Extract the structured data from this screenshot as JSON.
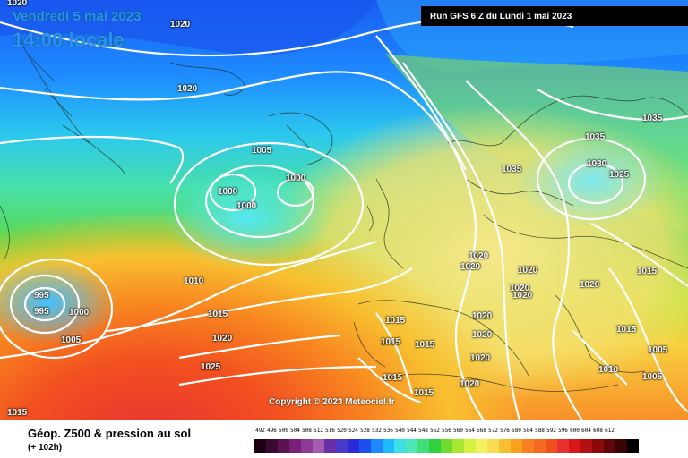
{
  "header": {
    "date_line": "Vendredi 5 mai 2023",
    "time_line": "14:00 locale",
    "run_info": "Run GFS 6 Z du Lundi 1 mai 2023"
  },
  "isobars": [
    {
      "label": "1020",
      "pos": "top-left corner"
    },
    {
      "label": "1020",
      "pos": "north-atlantic-north"
    },
    {
      "label": "1020",
      "pos": "greenland-south"
    },
    {
      "label": "1005",
      "pos": "mid-atlantic"
    },
    {
      "label": "1000",
      "pos": "low-center-a"
    },
    {
      "label": "1000",
      "pos": "low-center-b"
    },
    {
      "label": "1000",
      "pos": "low-center-c"
    },
    {
      "label": "995",
      "pos": "sw-low-upper"
    },
    {
      "label": "995",
      "pos": "sw-low-lower"
    },
    {
      "label": "1000",
      "pos": "sw-low-right"
    },
    {
      "label": "1005",
      "pos": "sw-low-bottom"
    },
    {
      "label": "1010",
      "pos": "atlantic-south"
    },
    {
      "label": "1015",
      "pos": "atlantic-south-2"
    },
    {
      "label": "1020",
      "pos": "atlantic-south-3"
    },
    {
      "label": "1025",
      "pos": "atlantic-south-4"
    },
    {
      "label": "1015",
      "pos": "bottom-left"
    },
    {
      "label": "1035",
      "pos": "scandinavia-west"
    },
    {
      "label": "1035",
      "pos": "scandinavia-east"
    },
    {
      "label": "1035",
      "pos": "scandinavia-far-east"
    },
    {
      "label": "1030",
      "pos": "baltic"
    },
    {
      "label": "1025",
      "pos": "baltic-east"
    },
    {
      "label": "1020",
      "pos": "central-europe-1"
    },
    {
      "label": "1020",
      "pos": "central-europe-2"
    },
    {
      "label": "1020",
      "pos": "alps-1"
    },
    {
      "label": "1020",
      "pos": "alps-2"
    },
    {
      "label": "1020",
      "pos": "alps-3"
    },
    {
      "label": "1020",
      "pos": "east-europe"
    },
    {
      "label": "1015",
      "pos": "east-europe-2"
    },
    {
      "label": "1015",
      "pos": "balkans"
    },
    {
      "label": "1005",
      "pos": "turkey"
    },
    {
      "label": "1010",
      "pos": "aegean"
    },
    {
      "label": "1005",
      "pos": "anatolia"
    },
    {
      "label": "1015",
      "pos": "iberia-1"
    },
    {
      "label": "1015",
      "pos": "iberia-2"
    },
    {
      "label": "1015",
      "pos": "iberia-3"
    },
    {
      "label": "1015",
      "pos": "north-africa-1"
    },
    {
      "label": "1015",
      "pos": "north-africa-2"
    },
    {
      "label": "1020",
      "pos": "italy-1"
    },
    {
      "label": "1020",
      "pos": "italy-2"
    },
    {
      "label": "1020",
      "pos": "med-1"
    },
    {
      "label": "1020",
      "pos": "med-2"
    }
  ],
  "copyright": "Copyright © 2023 Meteociel.fr",
  "legend": {
    "title": "Géop. Z500 & pression au sol",
    "subtitle": "(+ 102h)",
    "scale": [
      {
        "label": "492",
        "color": "#1a0012"
      },
      {
        "label": "496",
        "color": "#3a0a30"
      },
      {
        "label": "500",
        "color": "#5a1250"
      },
      {
        "label": "504",
        "color": "#7a2078"
      },
      {
        "label": "508",
        "color": "#8e3a96"
      },
      {
        "label": "512",
        "color": "#a35cb0"
      },
      {
        "label": "516",
        "color": "#6a2ea8"
      },
      {
        "label": "520",
        "color": "#4a3ac8"
      },
      {
        "label": "524",
        "color": "#2a2ad8"
      },
      {
        "label": "528",
        "color": "#1a50f0"
      },
      {
        "label": "532",
        "color": "#1e88ff"
      },
      {
        "label": "536",
        "color": "#1ebcff"
      },
      {
        "label": "540",
        "color": "#3ee0e8"
      },
      {
        "label": "544",
        "color": "#4ee8b8"
      },
      {
        "label": "548",
        "color": "#3ee07a"
      },
      {
        "label": "552",
        "color": "#30d040"
      },
      {
        "label": "556",
        "color": "#70dc30"
      },
      {
        "label": "560",
        "color": "#a8e830"
      },
      {
        "label": "564",
        "color": "#d8f040"
      },
      {
        "label": "568",
        "color": "#f4f060"
      },
      {
        "label": "572",
        "color": "#fadc50"
      },
      {
        "label": "576",
        "color": "#f8c030"
      },
      {
        "label": "580",
        "color": "#f8a020"
      },
      {
        "label": "584",
        "color": "#f68020"
      },
      {
        "label": "588",
        "color": "#f46a20"
      },
      {
        "label": "592",
        "color": "#f05020"
      },
      {
        "label": "596",
        "color": "#e83030"
      },
      {
        "label": "600",
        "color": "#d81818"
      },
      {
        "label": "604",
        "color": "#b01010"
      },
      {
        "label": "608",
        "color": "#880a0a"
      },
      {
        "label": "612",
        "color": "#600606"
      }
    ],
    "extra_swatches": [
      "#3a0404",
      "#000000"
    ]
  }
}
